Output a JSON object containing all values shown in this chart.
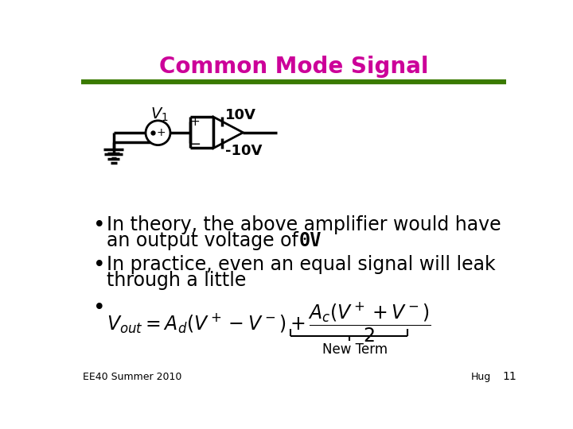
{
  "title": "Common Mode Signal",
  "title_color": "#CC0099",
  "title_fontsize": 20,
  "line_color_green": "#3A7A00",
  "background_color": "#FFFFFF",
  "bullet1_line1": "In theory, the above amplifier would have",
  "bullet1_line2": "an output voltage of  ",
  "bullet1_0V": "0V",
  "bullet2_line1": "In practice, even an equal signal will leak",
  "bullet2_line2": "through a little",
  "footer_left": "EE40 Summer 2010",
  "footer_right_name": "Hug",
  "footer_right_num": "11",
  "text_color": "#000000",
  "body_fontsize": 17,
  "circuit_color": "#000000",
  "plus_10V": "10V",
  "minus_10V": "-10V"
}
